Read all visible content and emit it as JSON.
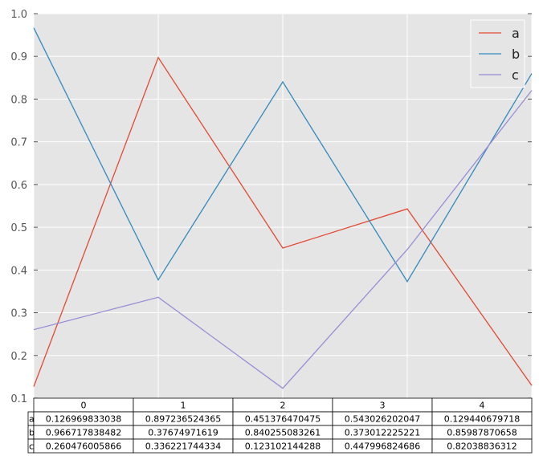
{
  "chart_data": {
    "type": "line",
    "x": [
      0,
      1,
      2,
      3,
      4
    ],
    "xlim": [
      0,
      4
    ],
    "ylim": [
      0.1,
      1.0
    ],
    "yticks": [
      "0.1",
      "0.2",
      "0.3",
      "0.4",
      "0.5",
      "0.6",
      "0.7",
      "0.8",
      "0.9",
      "1.0"
    ],
    "grid": true,
    "legend_placement": "top-right",
    "background": "#E5E5E5",
    "series": [
      {
        "name": "a",
        "color": "#E24A33",
        "values": [
          0.126969833038,
          0.897236524365,
          0.451376470475,
          0.543026202047,
          0.129440679718
        ]
      },
      {
        "name": "b",
        "color": "#348ABD",
        "values": [
          0.966717838482,
          0.37674971619,
          0.840255083261,
          0.373012225221,
          0.85987870658
        ]
      },
      {
        "name": "c",
        "color": "#988ED5",
        "values": [
          0.260476005866,
          0.336221744334,
          0.123102144288,
          0.447996824686,
          0.82038836312
        ]
      }
    ],
    "table": {
      "columns": [
        "0",
        "1",
        "2",
        "3",
        "4"
      ],
      "rows": [
        {
          "label": "a",
          "cells": [
            "0.126969833038",
            "0.897236524365",
            "0.451376470475",
            "0.543026202047",
            "0.129440679718"
          ]
        },
        {
          "label": "b",
          "cells": [
            "0.966717838482",
            "0.37674971619",
            "0.840255083261",
            "0.373012225221",
            "0.85987870658"
          ]
        },
        {
          "label": "c",
          "cells": [
            "0.260476005866",
            "0.336221744334",
            "0.123102144288",
            "0.447996824686",
            "0.82038836312"
          ]
        }
      ]
    }
  }
}
